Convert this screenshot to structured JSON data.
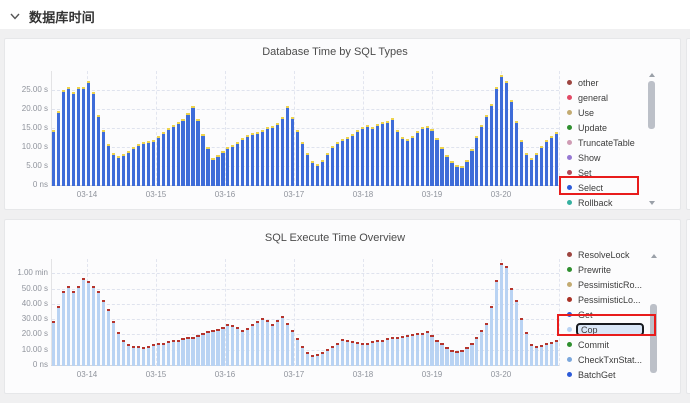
{
  "section": {
    "title": "数据库时间"
  },
  "panel1": {
    "title": "Database Time by SQL Types"
  },
  "panel2": {
    "title": "SQL Execute Time Overview"
  },
  "legend1": [
    {
      "label": "other",
      "color": "#9d4540"
    },
    {
      "label": "general",
      "color": "#e24a66"
    },
    {
      "label": "Use",
      "color": "#c3ab72"
    },
    {
      "label": "Update",
      "color": "#2f8f2f"
    },
    {
      "label": "TruncateTable",
      "color": "#cf9bb4"
    },
    {
      "label": "Show",
      "color": "#9678d3"
    },
    {
      "label": "Set",
      "color": "#b24a5a"
    },
    {
      "label": "Select",
      "color": "#2d5bd8",
      "highlighted": true
    },
    {
      "label": "Rollback",
      "color": "#35b0a0"
    }
  ],
  "legend2": [
    {
      "label": "ResolveLock",
      "color": "#9d4540"
    },
    {
      "label": "Prewrite",
      "color": "#2f8f2f"
    },
    {
      "label": "PessimisticRo...",
      "color": "#c3ab72"
    },
    {
      "label": "PessimisticLo...",
      "color": "#a93226"
    },
    {
      "label": "Get",
      "color": "#2d5bd8"
    },
    {
      "label": "Cop",
      "color": "#b9d3f3",
      "focused": true,
      "highlighted": true
    },
    {
      "label": "Commit",
      "color": "#2f8f2f"
    },
    {
      "label": "CheckTxnStat...",
      "color": "#7ba7dc"
    },
    {
      "label": "BatchGet",
      "color": "#2d5bd8"
    }
  ],
  "annotations": {
    "select_box": {
      "target": "Select legend item",
      "color": "#e81c1c"
    },
    "cop_box": {
      "target": "Cop legend item (keyboard-focused)",
      "color": "#e81c1c"
    }
  },
  "chart_data": [
    {
      "type": "bar",
      "title": "Database Time by SQL Types",
      "unit": "seconds",
      "ylim": [
        0,
        30
      ],
      "grid": "dashed",
      "legend_position": "right",
      "y_ticks": [
        {
          "label": "25.00 s",
          "value": 25
        },
        {
          "label": "20.00 s",
          "value": 20
        },
        {
          "label": "15.00 s",
          "value": 15
        },
        {
          "label": "10.00 s",
          "value": 10
        },
        {
          "label": "5.00 s",
          "value": 5
        },
        {
          "label": "0 ns",
          "value": 0
        }
      ],
      "x_tick_labels": [
        "03-14",
        "03-15",
        "03-16",
        "03-17",
        "03-18",
        "03-19",
        "03-20"
      ],
      "series": [
        {
          "name": "Select",
          "color": "#3e6cd8",
          "values": [
            14,
            19,
            24.5,
            25.5,
            24,
            25.5,
            25.5,
            27,
            24,
            18,
            14,
            10.5,
            8,
            7.2,
            7.8,
            8.5,
            9.5,
            10.5,
            11,
            11.2,
            11.5,
            12.5,
            13.5,
            14.5,
            15.5,
            16.2,
            17,
            18.5,
            20.5,
            17,
            13,
            9.5,
            6.8,
            7.5,
            8.5,
            9.5,
            10.2,
            11,
            12,
            12.8,
            13.2,
            13.5,
            14,
            14.8,
            15.2,
            16,
            17.5,
            20.5,
            17.5,
            14,
            11,
            8,
            6,
            5.2,
            6.2,
            8,
            9.8,
            11,
            11.8,
            12.3,
            13,
            14,
            14.8,
            15.3,
            15,
            15.8,
            16.2,
            16.5,
            17.3,
            14,
            12.3,
            11.8,
            12.5,
            13.8,
            14.8,
            15.2,
            14.3,
            12,
            9.5,
            7.5,
            6,
            5,
            4.6,
            6.2,
            9,
            12.5,
            15.5,
            18,
            21,
            25.5,
            28.5,
            27,
            22,
            16.5,
            11.5,
            8,
            6.8,
            8,
            10,
            11.5,
            12.5,
            13.5
          ]
        },
        {
          "name": "other SQL types (stack cap)",
          "color": "#edd34e",
          "note": "thin yellow cap drawn on top of every stacked bar"
        }
      ]
    },
    {
      "type": "bar",
      "title": "SQL Execute Time Overview",
      "unit": "seconds",
      "ylim": [
        0,
        70
      ],
      "grid": "dashed",
      "legend_position": "right",
      "y_ticks": [
        {
          "label": "1.00 min",
          "value": 60
        },
        {
          "label": "50.00 s",
          "value": 50
        },
        {
          "label": "40.00 s",
          "value": 40
        },
        {
          "label": "30.00 s",
          "value": 30
        },
        {
          "label": "20.00 s",
          "value": 20
        },
        {
          "label": "10.00 s",
          "value": 10
        },
        {
          "label": "0 ns",
          "value": 0
        }
      ],
      "x_tick_labels": [
        "03-14",
        "03-15",
        "03-16",
        "03-17",
        "03-18",
        "03-19",
        "03-20"
      ],
      "series": [
        {
          "name": "Cop",
          "color": "#b9d3f3",
          "values": [
            28,
            38,
            48,
            51,
            48,
            51,
            56,
            54,
            51,
            48,
            42,
            36,
            28,
            21,
            16,
            13,
            12,
            11.5,
            11,
            12,
            13,
            13.5,
            14,
            15,
            15.5,
            16,
            17,
            17.5,
            18,
            19,
            20.5,
            21.5,
            22,
            23,
            24.5,
            26.5,
            25.5,
            24,
            22,
            23.5,
            26,
            28,
            30,
            28.5,
            26,
            29,
            31.5,
            27,
            22,
            17,
            12,
            8,
            6,
            6.5,
            8,
            10,
            12,
            14,
            16.5,
            15.5,
            15,
            14.5,
            13.5,
            14,
            15,
            15.5,
            16,
            17,
            17.5,
            18,
            18.5,
            19,
            19.5,
            20,
            20.5,
            21.5,
            19,
            16,
            14,
            11,
            9.5,
            8.5,
            9,
            11,
            14,
            18,
            22,
            27,
            38,
            55,
            66,
            64,
            50,
            42,
            30,
            21,
            13,
            11.5,
            12.5,
            13.5,
            14.5,
            15.5
          ]
        },
        {
          "name": "other execute types (top marker)",
          "color": "#b5342c",
          "note": "small red tip drawn on top of every bar"
        }
      ]
    }
  ]
}
